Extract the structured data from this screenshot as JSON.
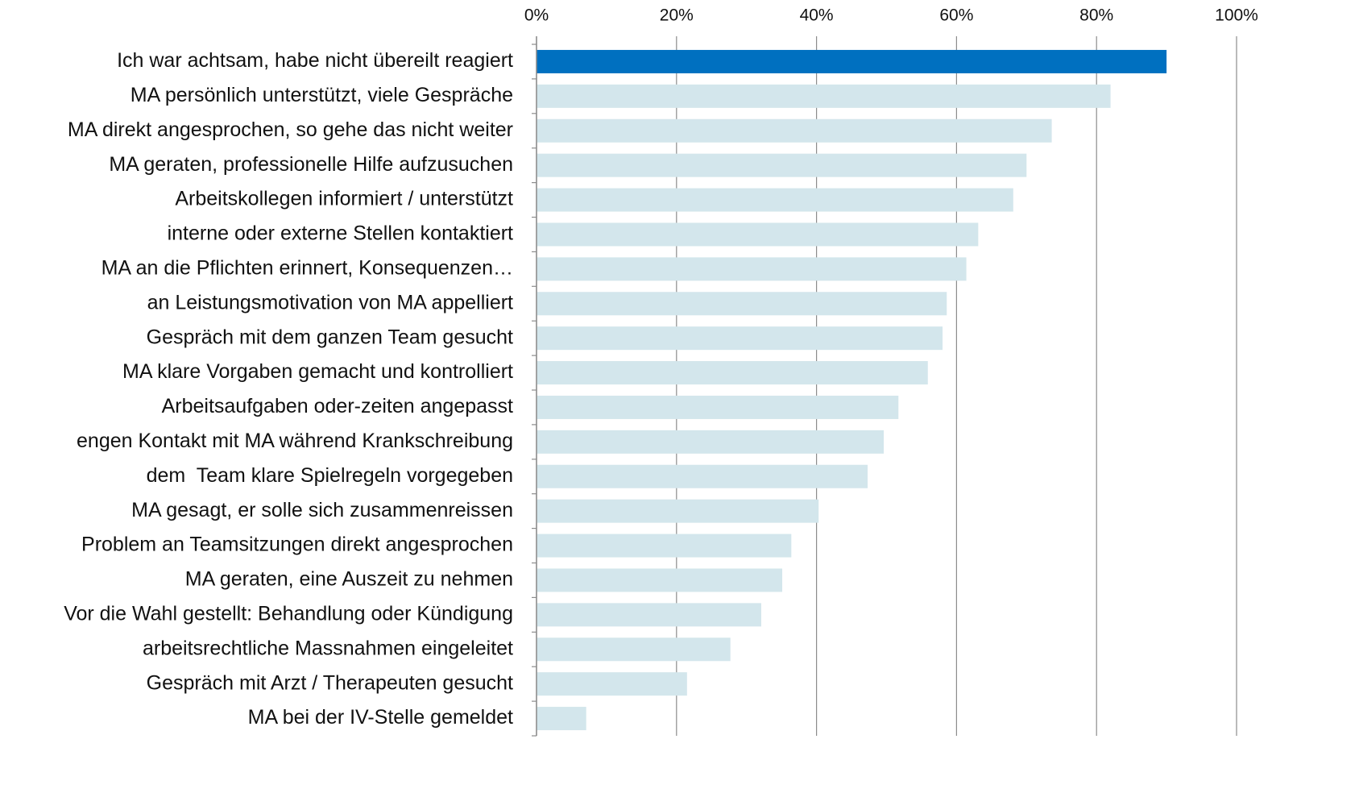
{
  "chart_data": {
    "type": "barh",
    "categories": [
      "Ich war achtsam, habe nicht übereilt reagiert",
      "MA persönlich unterstützt, viele Gespräche",
      "MA direkt angesprochen, so gehe das nicht weiter",
      "MA geraten, professionelle Hilfe aufzusuchen",
      "Arbeitskollegen informiert / unterstützt",
      "interne oder externe Stellen kontaktiert",
      "MA an die Pflichten erinnert, Konsequenzen…",
      "an Leistungsmotivation von MA appelliert",
      "Gespräch mit dem ganzen Team gesucht",
      "MA klare Vorgaben gemacht und kontrolliert",
      "Arbeitsaufgaben oder-zeiten angepasst",
      "engen Kontakt mit MA während Krankschreibung",
      "dem  Team klare Spielregeln vorgegeben",
      "MA gesagt, er solle sich zusammenreissen",
      "Problem an Teamsitzungen direkt angesprochen",
      "MA geraten, eine Auszeit zu nehmen",
      "Vor die Wahl gestellt: Behandlung oder Kündigung",
      "arbeitsrechtliche Massnahmen eingeleitet",
      "Gespräch mit Arzt / Therapeuten gesucht",
      "MA bei der IV-Stelle gemeldet"
    ],
    "values": [
      90.0,
      82.0,
      73.6,
      70.0,
      68.1,
      63.1,
      61.4,
      58.6,
      58.0,
      55.9,
      51.7,
      49.6,
      47.3,
      40.3,
      36.4,
      35.1,
      32.1,
      27.7,
      21.5,
      7.1
    ],
    "colors": [
      "#0070c0",
      "#d3e6ec",
      "#d3e6ec",
      "#d3e6ec",
      "#d3e6ec",
      "#d3e6ec",
      "#d3e6ec",
      "#d3e6ec",
      "#d3e6ec",
      "#d3e6ec",
      "#d3e6ec",
      "#d3e6ec",
      "#d3e6ec",
      "#d3e6ec",
      "#d3e6ec",
      "#d3e6ec",
      "#d3e6ec",
      "#d3e6ec",
      "#d3e6ec",
      "#d3e6ec"
    ],
    "xlim": [
      0,
      100
    ],
    "xticks": [
      {
        "value": 0,
        "label": "0%"
      },
      {
        "value": 20,
        "label": "20%"
      },
      {
        "value": 40,
        "label": "40%"
      },
      {
        "value": 60,
        "label": "60%"
      },
      {
        "value": 80,
        "label": "80%"
      },
      {
        "value": 100,
        "label": "100%"
      }
    ],
    "grid": true
  }
}
